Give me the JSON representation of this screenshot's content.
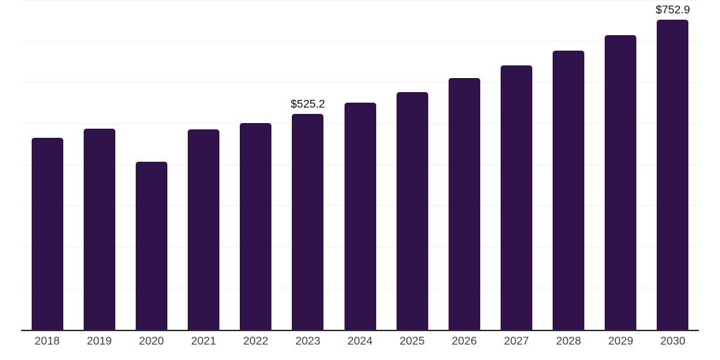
{
  "chart_data": {
    "type": "bar",
    "title": "",
    "xlabel": "",
    "ylabel": "",
    "categories": [
      "2018",
      "2019",
      "2020",
      "2021",
      "2022",
      "2023",
      "2024",
      "2025",
      "2026",
      "2027",
      "2028",
      "2029",
      "2030"
    ],
    "values": [
      467,
      489,
      409,
      487,
      502,
      525.2,
      551,
      578,
      611,
      643,
      678,
      715,
      752.9
    ],
    "value_labels": [
      "",
      "",
      "",
      "",
      "",
      "$525.2",
      "",
      "",
      "",
      "",
      "",
      "",
      "$752.9"
    ],
    "value_prefix": "$",
    "ylim": [
      0,
      801
    ],
    "gridline_step": 100,
    "grid": "horizontal",
    "legend": "none",
    "colors": {
      "bar": "#30134a",
      "gridline": "#f2f2f2",
      "axis_line": "#2e2e2e",
      "tick_label": "#3d3d3d",
      "value_label": "#0d0d0d",
      "background": "#ffffff"
    }
  }
}
